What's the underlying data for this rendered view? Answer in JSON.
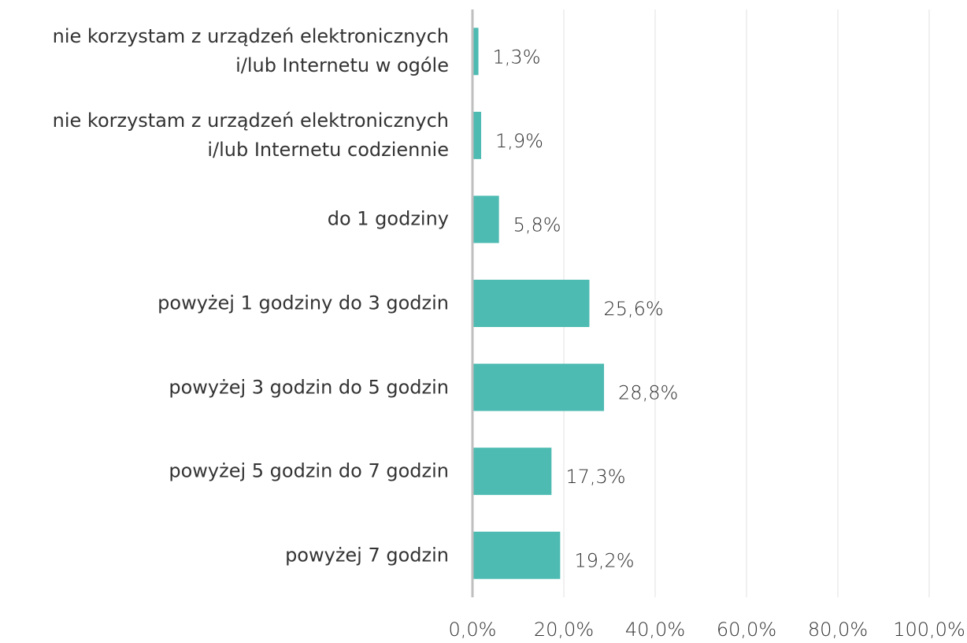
{
  "chart_data": {
    "type": "barh",
    "categories": [
      "nie korzystam z urządzeń elektronicznych\ni/lub Internetu w ogóle",
      "nie korzystam z urządzeń elektronicznych\ni/lub Internetu codziennie",
      "do 1 godziny",
      "powyżej 1 godziny do 3 godzin",
      "powyżej 3 godzin do 5 godzin",
      "powyżej 5 godzin do 7 godzin",
      "powyżej 7 godzin"
    ],
    "values": [
      1.3,
      1.9,
      5.8,
      25.6,
      28.8,
      17.3,
      19.2
    ],
    "value_labels": [
      "1,3%",
      "1,9%",
      "5,8%",
      "25,6%",
      "28,8%",
      "17,3%",
      "19,2%"
    ],
    "color": "#4dbbb2",
    "xlim": [
      0,
      100
    ],
    "xticks": [
      {
        "value": 0,
        "label": "0,0%"
      },
      {
        "value": 20,
        "label": "20,0%"
      },
      {
        "value": 40,
        "label": "40,0%"
      },
      {
        "value": 60,
        "label": "60,0%"
      },
      {
        "value": 80,
        "label": "80,0%"
      },
      {
        "value": 100,
        "label": "100,0%"
      }
    ],
    "grid": true
  }
}
